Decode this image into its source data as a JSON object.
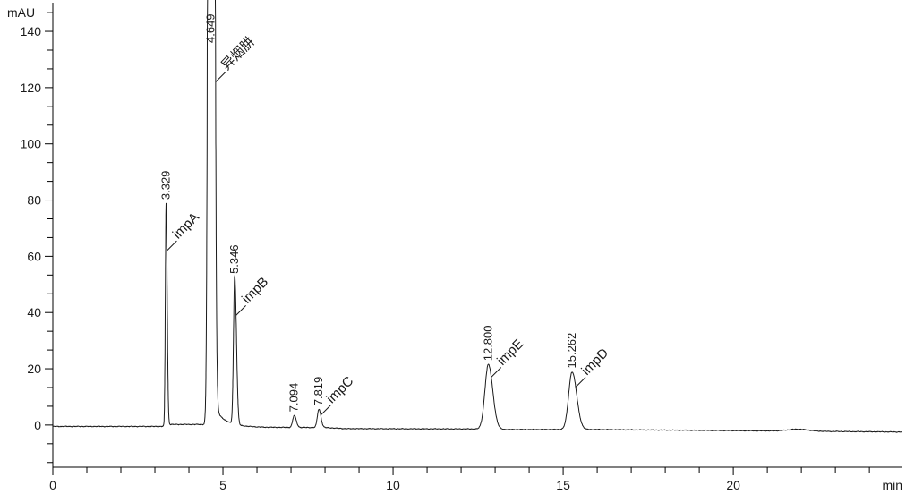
{
  "chart_data": {
    "type": "line",
    "chart_kind": "hplc-chromatogram",
    "title": "",
    "x_axis": {
      "unit_label": "min",
      "major_ticks": [
        0,
        5,
        10,
        15,
        20
      ],
      "minor_tick_step": 1,
      "range": [
        0,
        24.97
      ]
    },
    "y_axis": {
      "unit_label": "mAU",
      "major_ticks": [
        0,
        20,
        40,
        60,
        80,
        100,
        120,
        140
      ],
      "minor_ticks_per_interval": 2,
      "range": [
        -15,
        150.2
      ]
    },
    "grid": false,
    "legend": false,
    "trace_color": "#1a1a1a",
    "axis_color": "#000000",
    "peaks": [
      {
        "rt": 3.329,
        "rt_label": "3.329",
        "compound": "impA",
        "height_mau": 79,
        "sigma_l": 0.022,
        "sigma_r": 0.032,
        "clipped": false,
        "leader_from_mau": 62
      },
      {
        "rt": 4.649,
        "rt_label": "4.649",
        "compound": "异烟肼",
        "height_mau": 1500,
        "sigma_l": 0.05,
        "sigma_r": 0.06,
        "clipped": true,
        "leader_from_mau": 122,
        "tail": {
          "amp": 9,
          "tau": 0.28
        }
      },
      {
        "rt": 5.346,
        "rt_label": "5.346",
        "compound": "impB",
        "height_mau": 53,
        "sigma_l": 0.035,
        "sigma_r": 0.05,
        "clipped": false,
        "leader_from_mau": 39
      },
      {
        "rt": 7.094,
        "rt_label": "7.094",
        "compound": null,
        "height_mau": 4.2,
        "sigma_l": 0.045,
        "sigma_r": 0.06,
        "clipped": false,
        "leader_from_mau": null
      },
      {
        "rt": 7.819,
        "rt_label": "7.819",
        "compound": "impC",
        "height_mau": 6.5,
        "sigma_l": 0.045,
        "sigma_r": 0.06,
        "clipped": false,
        "leader_from_mau": 3.5
      },
      {
        "rt": 12.8,
        "rt_label": "12.800",
        "compound": "impE",
        "height_mau": 23,
        "sigma_l": 0.1,
        "sigma_r": 0.13,
        "clipped": false,
        "leader_from_mau": 17
      },
      {
        "rt": 15.262,
        "rt_label": "15.262",
        "compound": "impD",
        "height_mau": 20.5,
        "sigma_l": 0.1,
        "sigma_r": 0.135,
        "clipped": false,
        "leader_from_mau": 13.5
      }
    ],
    "baseline_mau": [
      [
        0,
        -0.5
      ],
      [
        3.2,
        -0.5
      ],
      [
        3.45,
        0.2
      ],
      [
        4.5,
        0.2
      ],
      [
        5.35,
        -0.5
      ],
      [
        6.2,
        -0.8
      ],
      [
        8.0,
        -0.9
      ],
      [
        8.6,
        -1.3
      ],
      [
        12.4,
        -1.4
      ],
      [
        13.4,
        -1.6
      ],
      [
        15.9,
        -1.6
      ],
      [
        20.0,
        -2.0
      ],
      [
        24.97,
        -2.5
      ]
    ],
    "noise_amp_mau": 0.12,
    "baseline_artifacts": [
      {
        "t": 21.9,
        "amp": 0.7,
        "sigma": 0.3
      }
    ]
  }
}
